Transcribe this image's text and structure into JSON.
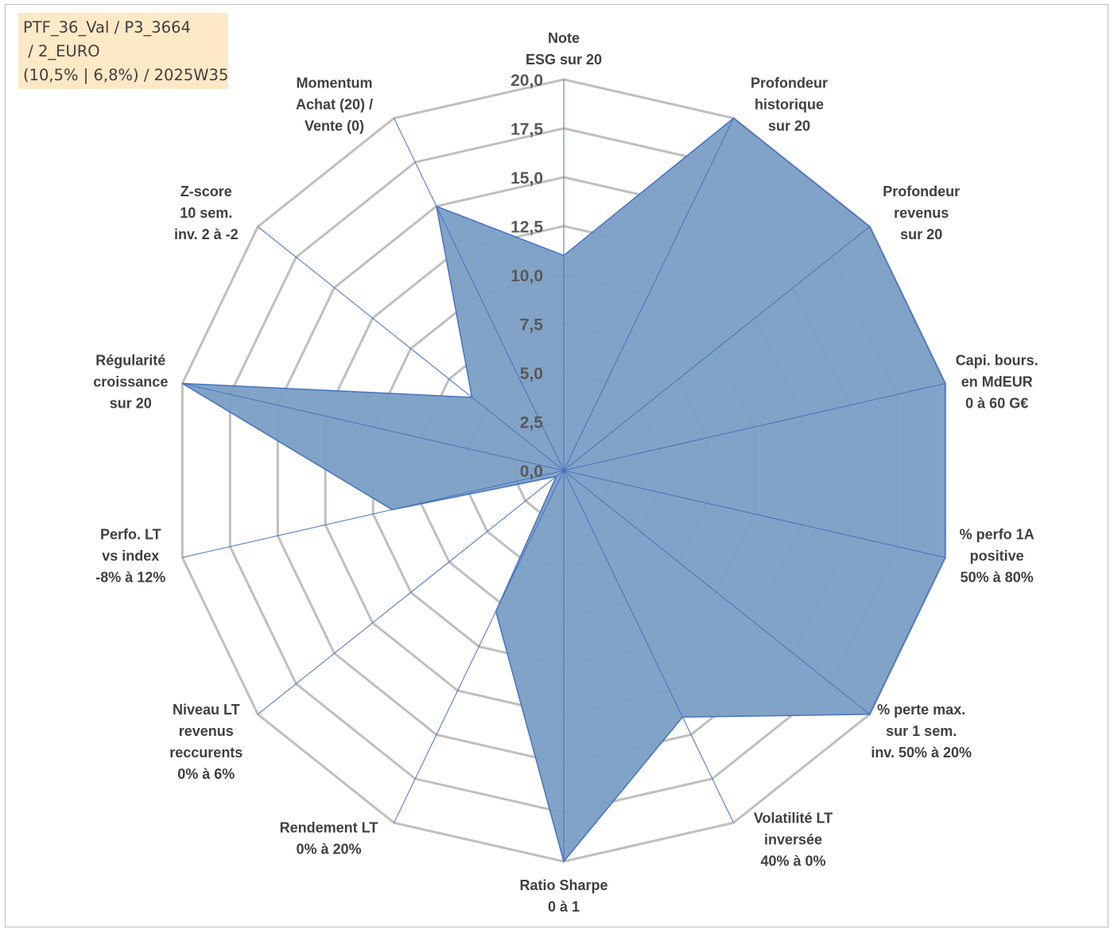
{
  "title_lines": [
    "PTF_36_Val / P3_3664",
    " / 2_EURO",
    "(10,5% | 6,8%) / 2025W35"
  ],
  "chart_data": {
    "type": "radar",
    "axes": [
      [
        "Note",
        "ESG sur 20"
      ],
      [
        "Profondeur",
        "historique",
        "sur 20"
      ],
      [
        "Profondeur",
        "revenus",
        "sur 20"
      ],
      [
        "Capi. bours.",
        "en MdEUR",
        "0 à 60 G€"
      ],
      [
        "% perfo 1A",
        "positive",
        "50% à 80%"
      ],
      [
        "% perte max.",
        "sur 1 sem.",
        "inv. 50% à 20%"
      ],
      [
        "Volatilité LT",
        "inversée",
        "40% à 0%"
      ],
      [
        "Ratio Sharpe",
        "0 à 1"
      ],
      [
        "Rendement LT",
        "0% à 20%"
      ],
      [
        "Niveau LT",
        "revenus",
        "reccurents",
        "0% à 6%"
      ],
      [
        "Perfo. LT",
        "vs index",
        "-8% à 12%"
      ],
      [
        "Régularité",
        "croissance",
        "sur 20"
      ],
      [
        "Z-score",
        "10 sem.",
        "inv. 2 à -2"
      ],
      [
        "Momentum",
        "Achat (20) /",
        "Vente (0)"
      ]
    ],
    "values": [
      11,
      20,
      20,
      20,
      20,
      20,
      14,
      20,
      8,
      0.5,
      9,
      20,
      6,
      15
    ],
    "ticks": [
      "0,0",
      "2,5",
      "5,0",
      "7,5",
      "10,0",
      "12,5",
      "15,0",
      "17,5",
      "20,0"
    ],
    "rmax": 20,
    "grid": true,
    "colors": {
      "fill": "#7a9ec4",
      "line": "#4472c4",
      "grid": "#bfbfbf",
      "spoke": "#4472c4"
    }
  }
}
